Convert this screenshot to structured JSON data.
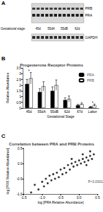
{
  "panel_labels": [
    "A",
    "B",
    "C"
  ],
  "blot": {
    "bands": [
      "PRB",
      "PRA"
    ],
    "loading_control": "GAPDH",
    "lane_title": "Gestational stage:",
    "lanes": [
      "45d",
      "55dA",
      "55dB",
      "62d"
    ]
  },
  "chart_data": [
    {
      "type": "bar",
      "title": "Progesterone Receptor Proteins",
      "x_label": "Gestational Stage",
      "y_label": "Relative Abundance",
      "categories": [
        "45d",
        "55dA",
        "55dB",
        "62d",
        "67d",
        "Labor"
      ],
      "series": [
        {
          "name": "PRA",
          "color": "#000000",
          "values": [
            2.1,
            1.4,
            1.5,
            0.7,
            0.25,
            0.1
          ],
          "errors": [
            0.4,
            0.3,
            0.35,
            0.2,
            0.08,
            0.05
          ]
        },
        {
          "name": "PRB",
          "color": "#ffffff",
          "values": [
            2.6,
            1.9,
            2.0,
            0.8,
            0.35,
            0.25
          ],
          "errors": [
            0.5,
            0.4,
            0.45,
            0.25,
            0.1,
            0.1
          ]
        }
      ],
      "ylim": [
        0,
        3.5
      ],
      "yticks": [
        0,
        0.5,
        1,
        1.5,
        2,
        2.5,
        3,
        3.5
      ],
      "annotations": [
        {
          "text": "*",
          "x": "45d",
          "y": 3.2
        },
        {
          "text": "*",
          "x": "Labor",
          "y": 0.45
        }
      ],
      "legend": "upper right",
      "grid": false
    },
    {
      "type": "scatter",
      "title": "Correlation between PRA and PRB Proteins",
      "x_label": "log [PRA Relative Abundance]",
      "y_label": "log [PRB Relative Abundance]",
      "x": [
        -1.3,
        -1.2,
        -1.1,
        -1.0,
        -0.95,
        -0.9,
        -0.85,
        -0.8,
        -0.75,
        -0.7,
        -0.65,
        -0.6,
        -0.55,
        -0.5,
        -0.45,
        -0.4,
        -0.35,
        -0.3,
        -0.25,
        -0.2,
        -0.15,
        -0.1,
        -0.05,
        0.0,
        0.05,
        0.1,
        0.15,
        0.2,
        0.25,
        0.3,
        0.35,
        0.4,
        0.1,
        -0.2,
        0.2,
        0.3
      ],
      "values": [
        -0.95,
        -0.7,
        -0.85,
        -0.6,
        -0.75,
        -0.5,
        -0.65,
        -0.4,
        -0.55,
        -0.35,
        -0.5,
        -0.3,
        -0.45,
        -0.2,
        -0.35,
        -0.15,
        -0.3,
        -0.05,
        -0.2,
        0.0,
        -0.1,
        0.05,
        -0.05,
        0.1,
        0.0,
        0.15,
        0.05,
        0.2,
        0.1,
        0.25,
        0.15,
        0.3,
        0.3,
        0.15,
        -0.05,
        0.4
      ],
      "color": "#000000",
      "marker": "circle",
      "xlim": [
        -1.5,
        0.5
      ],
      "xticks": [
        -1.5,
        {
          "value": -1,
          "label": "-1.0"
        },
        -0.5,
        {
          "value": 0,
          "label": "0.0"
        },
        0.5
      ],
      "ylim": [
        -1,
        0.5
      ],
      "yticks": [
        {
          "value": -1,
          "label": "-1.0"
        },
        -0.5,
        {
          "value": 0,
          "label": "0.0"
        },
        0.5
      ],
      "annotations": [
        {
          "text": "P<0.0001",
          "x": 0.15,
          "y": -0.6
        }
      ],
      "grid": false
    }
  ]
}
